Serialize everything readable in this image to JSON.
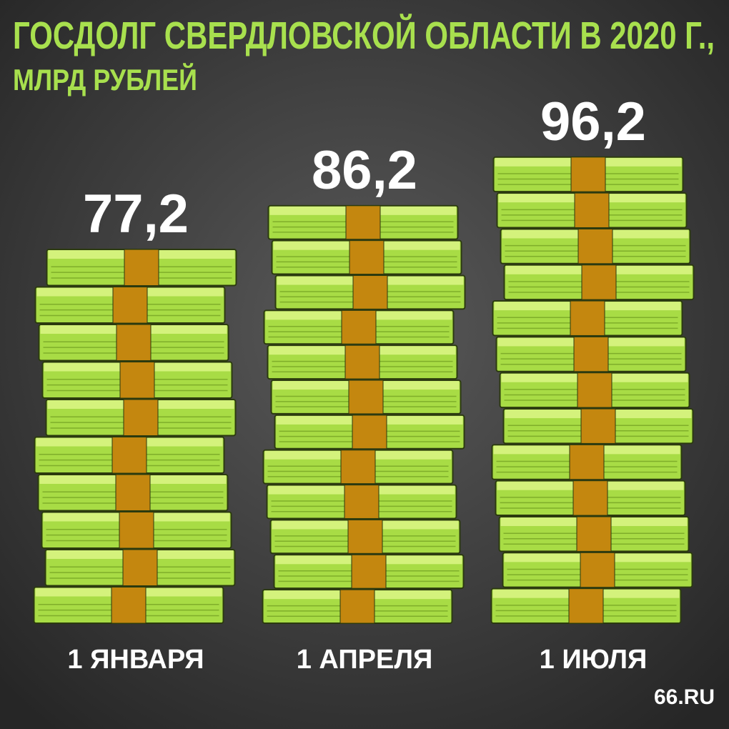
{
  "chart_data": {
    "type": "bar",
    "title": "ГОСДОЛГ СВЕРДЛОВСКОЙ ОБЛАСТИ В 2020 Г.,",
    "subtitle": "МЛРД РУБЛЕЙ",
    "categories": [
      "1 ЯНВАРЯ",
      "1 АПРЕЛЯ",
      "1 ИЮЛЯ"
    ],
    "values": [
      77.2,
      86.2,
      96.2
    ],
    "value_labels": [
      "77,2",
      "86,2",
      "96,2"
    ],
    "color": "#a8dc45",
    "source": "66.RU"
  }
}
